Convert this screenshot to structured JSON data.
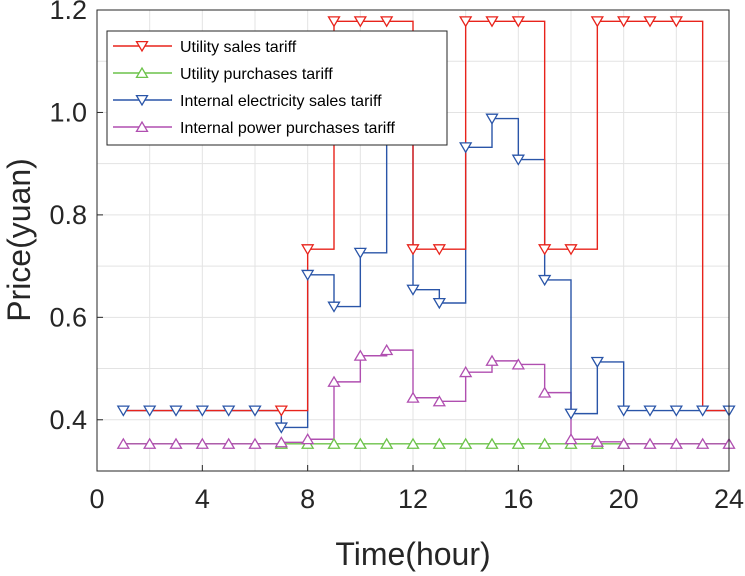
{
  "chart_data": {
    "type": "line",
    "step": true,
    "xlabel": "Time(hour)",
    "ylabel": "Price(yuan)",
    "xlim": [
      0,
      24
    ],
    "ylim": [
      0.3,
      1.2
    ],
    "xticks": [
      0,
      4,
      8,
      12,
      16,
      20,
      24
    ],
    "xtick_labels": [
      "0",
      "4",
      "8",
      "12",
      "16",
      "20",
      "24"
    ],
    "yticks": [
      0.4,
      0.6,
      0.8,
      1.0,
      1.2
    ],
    "ytick_labels": [
      "0.4",
      "0.6",
      "0.8",
      "1.0",
      "1.2"
    ],
    "grid": true,
    "legend_position": "top-left",
    "x": [
      1,
      2,
      3,
      4,
      5,
      6,
      7,
      8,
      9,
      10,
      11,
      12,
      13,
      14,
      15,
      16,
      17,
      18,
      19,
      20,
      21,
      22,
      23,
      24
    ],
    "series": [
      {
        "name": "Utility sales tariff",
        "color": "#e8231b",
        "marker": "triangle-down",
        "values": [
          0.418,
          0.418,
          0.418,
          0.418,
          0.418,
          0.418,
          0.418,
          0.733,
          1.178,
          1.178,
          1.178,
          0.733,
          0.733,
          1.178,
          1.178,
          1.178,
          0.733,
          0.733,
          1.178,
          1.178,
          1.178,
          1.178,
          0.418,
          0.418
        ],
        "markers_at": [
          7,
          8,
          9,
          10,
          11,
          12,
          13,
          14,
          15,
          16,
          17,
          18,
          19,
          20,
          21,
          22
        ]
      },
      {
        "name": "Utility purchases tariff",
        "color": "#6cc24a",
        "marker": "triangle-up",
        "values": [
          0.353,
          0.353,
          0.353,
          0.353,
          0.353,
          0.353,
          0.353,
          0.353,
          0.353,
          0.353,
          0.353,
          0.353,
          0.353,
          0.353,
          0.353,
          0.353,
          0.353,
          0.353,
          0.353,
          0.353,
          0.353,
          0.353,
          0.353,
          0.353
        ],
        "markers_at": [
          7,
          8,
          9,
          10,
          11,
          12,
          13,
          14,
          15,
          16,
          17,
          18,
          19,
          20
        ]
      },
      {
        "name": "Internal electricity sales tariff",
        "color": "#2a55a8",
        "marker": "triangle-down",
        "values": [
          0.418,
          0.418,
          0.418,
          0.418,
          0.418,
          0.418,
          0.385,
          0.683,
          0.621,
          0.726,
          0.963,
          0.654,
          0.628,
          0.932,
          0.988,
          0.908,
          0.673,
          0.412,
          0.513,
          0.418,
          0.418,
          0.418,
          0.418,
          0.418
        ],
        "markers_at": [
          1,
          2,
          3,
          4,
          5,
          6,
          7,
          8,
          9,
          10,
          11,
          12,
          13,
          14,
          15,
          16,
          17,
          18,
          19,
          20,
          21,
          22,
          23,
          24
        ]
      },
      {
        "name": "Internal power purchases tariff",
        "color": "#b04fb0",
        "marker": "triangle-up",
        "values": [
          0.353,
          0.353,
          0.353,
          0.353,
          0.353,
          0.353,
          0.356,
          0.362,
          0.474,
          0.525,
          0.536,
          0.443,
          0.436,
          0.493,
          0.515,
          0.508,
          0.453,
          0.362,
          0.357,
          0.353,
          0.353,
          0.353,
          0.353,
          0.353
        ],
        "markers_at": [
          1,
          2,
          3,
          4,
          5,
          6,
          7,
          8,
          9,
          10,
          11,
          12,
          13,
          14,
          15,
          16,
          17,
          18,
          19,
          20,
          21,
          22,
          23,
          24
        ]
      }
    ]
  }
}
